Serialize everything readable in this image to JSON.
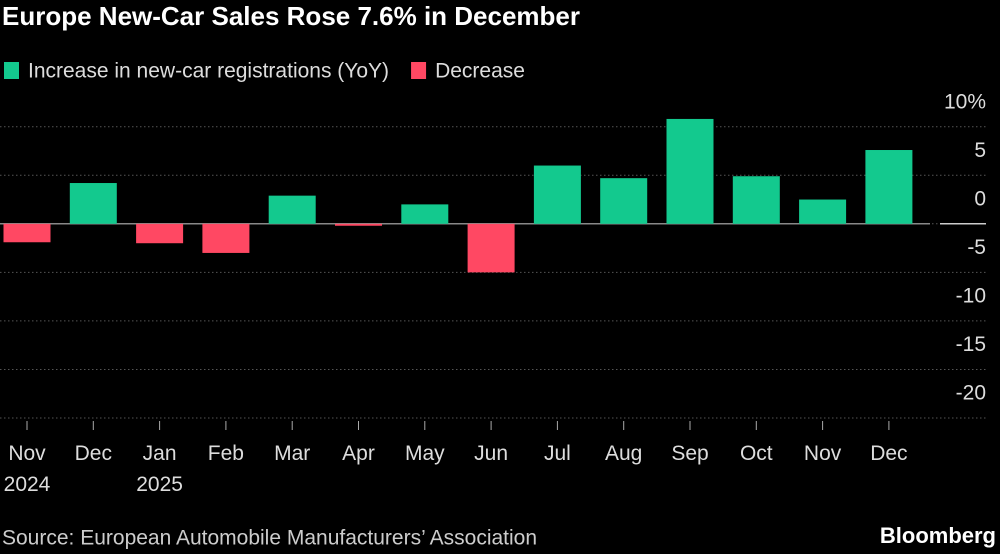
{
  "chart_data": {
    "type": "bar",
    "title": "Europe New-Car Sales Rose 7.6% in December",
    "categories": [
      "Nov\n2024",
      "Dec",
      "Jan\n2025",
      "Feb",
      "Mar",
      "Apr",
      "May",
      "Jun",
      "Jul",
      "Aug",
      "Sep",
      "Oct",
      "Nov",
      "Dec"
    ],
    "series": [
      {
        "name": "Increase in new-car registrations (YoY)",
        "color": "#13c98e",
        "values": [
          null,
          4.2,
          null,
          null,
          2.9,
          null,
          2.0,
          null,
          6.0,
          4.7,
          10.8,
          4.9,
          2.5,
          7.6
        ]
      },
      {
        "name": "Decrease",
        "color": "#ff4863",
        "values": [
          -1.9,
          null,
          -2.0,
          -3.0,
          null,
          -0.2,
          null,
          -5.0,
          null,
          null,
          null,
          null,
          null,
          null
        ]
      }
    ],
    "ylim": [
      -20,
      11
    ],
    "yticks": [
      {
        "value": 10,
        "label": "10%"
      },
      5,
      0,
      -5,
      -10,
      -15,
      -20
    ],
    "grid": true,
    "source": "Source: European Automobile Manufacturers’ Association",
    "brand": "Bloomberg"
  }
}
